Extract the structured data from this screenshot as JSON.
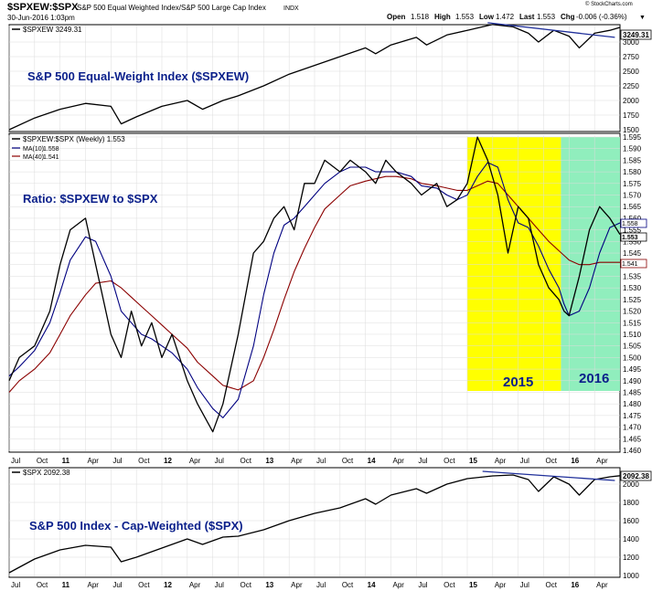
{
  "header": {
    "symbol": "$SPXEW:$SPX",
    "description": "S&P 500 Equal Weighted Index/S&P 500 Large Cap Index",
    "exchange": "INDX",
    "date": "30-Jun-2016 1:03pm",
    "open_label": "Open",
    "open_value": "1.518",
    "high_label": "High",
    "high_value": "1.553",
    "low_label": "Low",
    "low_value": "1.472",
    "last_label": "Last",
    "last_value": "1.553",
    "chg_label": "Chg",
    "chg_value": "-0.006 (-0.36%)",
    "chg_arrow": "▼",
    "credit": "© StockCharts.com"
  },
  "colors": {
    "price_line": "#000000",
    "ma10": "#000080",
    "ma40": "#8b0000",
    "trendline": "#1f2f9a",
    "highlight_2015": "#ffff00",
    "highlight_2016": "#90eebd",
    "annotation_text": "#0a1f8a",
    "grid": "#dcdcdc"
  },
  "chart_data": [
    {
      "type": "line",
      "panel": "top",
      "legend_label": "$SPXEW 3249.31",
      "annotation": "S&P 500 Equal-Weight Index ($SPXEW)",
      "last_value_label": "3249.31",
      "yticks": [
        "1500",
        "1750",
        "2000",
        "2250",
        "2500",
        "2750",
        "3000"
      ],
      "ylim": [
        1500,
        3250
      ],
      "x": [
        2010.5,
        2010.75,
        2011.0,
        2011.25,
        2011.5,
        2011.6,
        2011.75,
        2012.0,
        2012.25,
        2012.4,
        2012.6,
        2012.75,
        2013.0,
        2013.25,
        2013.5,
        2013.75,
        2014.0,
        2014.1,
        2014.25,
        2014.5,
        2014.6,
        2014.8,
        2015.0,
        2015.25,
        2015.45,
        2015.6,
        2015.7,
        2015.85,
        2016.0,
        2016.1,
        2016.25,
        2016.4,
        2016.5
      ],
      "values": [
        1500,
        1700,
        1850,
        1950,
        1900,
        1600,
        1720,
        1900,
        2000,
        1850,
        2000,
        2080,
        2250,
        2450,
        2600,
        2750,
        2900,
        2800,
        2950,
        3080,
        2950,
        3120,
        3200,
        3300,
        3260,
        3150,
        3000,
        3200,
        3100,
        2900,
        3150,
        3200,
        3250
      ],
      "trendline": {
        "x": [
          2015.2,
          2016.45
        ],
        "values": [
          3330,
          3080
        ]
      }
    },
    {
      "type": "line",
      "panel": "middle",
      "legend_label": "$SPXEW:$SPX (Weekly) 1.553",
      "series": [
        {
          "name": "$SPXEW:$SPX (Weekly)",
          "last": "1.553"
        },
        {
          "name": "MA(10)",
          "last": "1.558"
        },
        {
          "name": "MA(40)",
          "last": "1.541"
        }
      ],
      "annotation": "Ratio: $SPXEW to $SPX",
      "highlights": [
        {
          "label": "2015",
          "x_start": 2015.0,
          "x_end": 2015.92
        },
        {
          "label": "2016",
          "x_start": 2015.92,
          "x_end": 2016.5
        }
      ],
      "ylim": [
        1.46,
        1.595
      ],
      "yticks": [
        "1.460",
        "1.465",
        "1.470",
        "1.475",
        "1.480",
        "1.485",
        "1.490",
        "1.495",
        "1.500",
        "1.505",
        "1.510",
        "1.515",
        "1.520",
        "1.525",
        "1.530",
        "1.535",
        "1.540",
        "1.545",
        "1.550",
        "1.555",
        "1.560",
        "1.565",
        "1.570",
        "1.575",
        "1.580",
        "1.585",
        "1.590",
        "1.595"
      ],
      "x": [
        2010.5,
        2010.6,
        2010.75,
        2010.9,
        2011.0,
        2011.1,
        2011.25,
        2011.35,
        2011.5,
        2011.6,
        2011.7,
        2011.8,
        2011.9,
        2012.0,
        2012.1,
        2012.25,
        2012.35,
        2012.5,
        2012.6,
        2012.75,
        2012.9,
        2013.0,
        2013.1,
        2013.2,
        2013.3,
        2013.4,
        2013.5,
        2013.6,
        2013.75,
        2013.85,
        2014.0,
        2014.1,
        2014.2,
        2014.3,
        2014.45,
        2014.55,
        2014.7,
        2014.8,
        2014.9,
        2015.0,
        2015.1,
        2015.2,
        2015.3,
        2015.4,
        2015.5,
        2015.6,
        2015.7,
        2015.8,
        2015.9,
        2015.95,
        2016.0,
        2016.1,
        2016.2,
        2016.3,
        2016.4,
        2016.5
      ],
      "values": [
        1.49,
        1.5,
        1.505,
        1.52,
        1.54,
        1.555,
        1.56,
        1.54,
        1.51,
        1.5,
        1.52,
        1.505,
        1.515,
        1.5,
        1.51,
        1.49,
        1.48,
        1.468,
        1.48,
        1.51,
        1.545,
        1.55,
        1.56,
        1.565,
        1.555,
        1.575,
        1.575,
        1.585,
        1.58,
        1.585,
        1.58,
        1.575,
        1.585,
        1.58,
        1.575,
        1.57,
        1.575,
        1.565,
        1.568,
        1.575,
        1.595,
        1.585,
        1.57,
        1.545,
        1.565,
        1.56,
        1.54,
        1.53,
        1.525,
        1.52,
        1.518,
        1.535,
        1.555,
        1.565,
        1.56,
        1.553
      ],
      "ma10": [
        1.492,
        1.496,
        1.503,
        1.515,
        1.528,
        1.542,
        1.552,
        1.55,
        1.535,
        1.52,
        1.515,
        1.51,
        1.508,
        1.505,
        1.502,
        1.495,
        1.487,
        1.478,
        1.474,
        1.482,
        1.505,
        1.527,
        1.545,
        1.557,
        1.56,
        1.565,
        1.57,
        1.575,
        1.58,
        1.582,
        1.582,
        1.58,
        1.58,
        1.58,
        1.578,
        1.574,
        1.573,
        1.57,
        1.568,
        1.57,
        1.578,
        1.584,
        1.582,
        1.568,
        1.558,
        1.556,
        1.548,
        1.538,
        1.53,
        1.523,
        1.518,
        1.52,
        1.53,
        1.545,
        1.556,
        1.558
      ],
      "ma40": [
        1.485,
        1.49,
        1.495,
        1.502,
        1.51,
        1.518,
        1.527,
        1.532,
        1.533,
        1.53,
        1.526,
        1.522,
        1.518,
        1.514,
        1.51,
        1.504,
        1.498,
        1.492,
        1.488,
        1.486,
        1.49,
        1.5,
        1.512,
        1.525,
        1.537,
        1.547,
        1.556,
        1.564,
        1.57,
        1.574,
        1.576,
        1.577,
        1.578,
        1.578,
        1.577,
        1.575,
        1.574,
        1.573,
        1.572,
        1.572,
        1.574,
        1.576,
        1.575,
        1.57,
        1.565,
        1.56,
        1.555,
        1.55,
        1.546,
        1.544,
        1.542,
        1.54,
        1.54,
        1.541,
        1.541,
        1.541
      ]
    },
    {
      "type": "line",
      "panel": "bottom",
      "legend_label": "$SPX 2092.38",
      "annotation": "S&P 500 Index - Cap-Weighted ($SPX)",
      "last_value_label": "2092.38",
      "yticks": [
        "1000",
        "1200",
        "1400",
        "1600",
        "1800",
        "2000"
      ],
      "ylim": [
        1000,
        2150
      ],
      "x": [
        2010.5,
        2010.75,
        2011.0,
        2011.25,
        2011.5,
        2011.6,
        2011.75,
        2012.0,
        2012.25,
        2012.4,
        2012.6,
        2012.75,
        2013.0,
        2013.25,
        2013.5,
        2013.75,
        2014.0,
        2014.1,
        2014.25,
        2014.5,
        2014.6,
        2014.8,
        2015.0,
        2015.25,
        2015.45,
        2015.6,
        2015.7,
        2015.85,
        2016.0,
        2016.1,
        2016.25,
        2016.4,
        2016.5
      ],
      "values": [
        1030,
        1180,
        1280,
        1330,
        1310,
        1150,
        1200,
        1300,
        1400,
        1340,
        1420,
        1430,
        1500,
        1600,
        1680,
        1740,
        1840,
        1780,
        1880,
        1950,
        1900,
        2000,
        2060,
        2090,
        2100,
        2050,
        1920,
        2080,
        2000,
        1880,
        2050,
        2080,
        2092
      ],
      "trendline": {
        "x": [
          2015.15,
          2016.45
        ],
        "values": [
          2140,
          2040
        ]
      }
    }
  ],
  "x_axis": {
    "ticks": [
      {
        "x": 2010.5,
        "label": "Jul"
      },
      {
        "x": 2010.75,
        "label": "Oct"
      },
      {
        "x": 2011.0,
        "label": "11"
      },
      {
        "x": 2011.25,
        "label": "Apr"
      },
      {
        "x": 2011.5,
        "label": "Jul"
      },
      {
        "x": 2011.75,
        "label": "Oct"
      },
      {
        "x": 2012.0,
        "label": "12"
      },
      {
        "x": 2012.25,
        "label": "Apr"
      },
      {
        "x": 2012.5,
        "label": "Jul"
      },
      {
        "x": 2012.75,
        "label": "Oct"
      },
      {
        "x": 2013.0,
        "label": "13"
      },
      {
        "x": 2013.25,
        "label": "Apr"
      },
      {
        "x": 2013.5,
        "label": "Jul"
      },
      {
        "x": 2013.75,
        "label": "Oct"
      },
      {
        "x": 2014.0,
        "label": "14"
      },
      {
        "x": 2014.25,
        "label": "Apr"
      },
      {
        "x": 2014.5,
        "label": "Jul"
      },
      {
        "x": 2014.75,
        "label": "Oct"
      },
      {
        "x": 2015.0,
        "label": "15"
      },
      {
        "x": 2015.25,
        "label": "Apr"
      },
      {
        "x": 2015.5,
        "label": "Jul"
      },
      {
        "x": 2015.75,
        "label": "Oct"
      },
      {
        "x": 2016.0,
        "label": "16"
      },
      {
        "x": 2016.25,
        "label": "Apr"
      }
    ],
    "range": [
      2010.5,
      2016.5
    ]
  }
}
